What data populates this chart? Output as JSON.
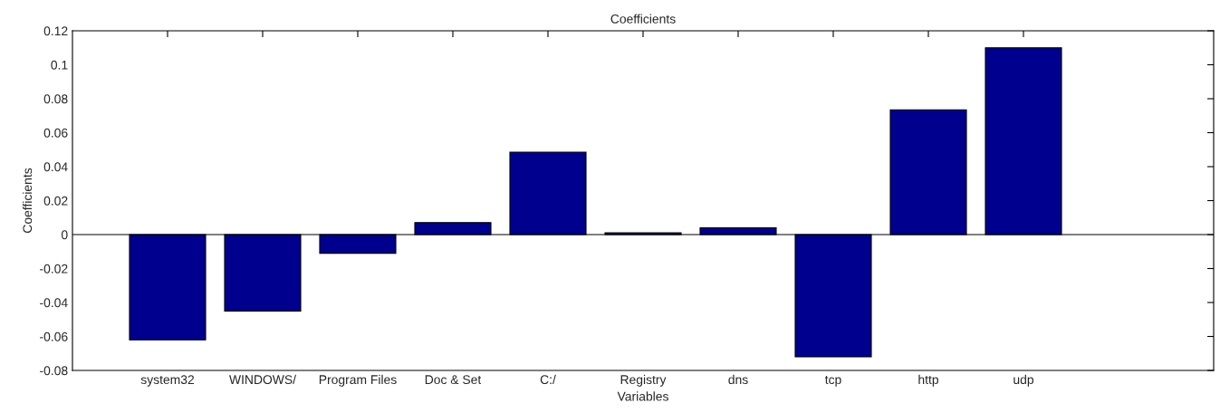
{
  "chart_data": {
    "type": "bar",
    "title": "Coefficients",
    "xlabel": "Variables",
    "ylabel": "Coefficients",
    "categories": [
      "system32",
      "WINDOWS/",
      "Program Files",
      "Doc & Set",
      "C:/",
      "Registry",
      "dns",
      "tcp",
      "http",
      "udp"
    ],
    "values": [
      -0.062,
      -0.045,
      -0.011,
      0.007,
      0.0485,
      0.001,
      0.004,
      -0.072,
      0.0735,
      0.11
    ],
    "color": "#00008f",
    "ylim": [
      -0.08,
      0.12
    ],
    "yticks": [
      -0.08,
      -0.06,
      -0.04,
      -0.02,
      0,
      0.02,
      0.04,
      0.06,
      0.08,
      0.1,
      0.12
    ],
    "ref_lines": [
      {
        "axis": "y",
        "value": 0,
        "color": "#000000"
      }
    ],
    "grid": false,
    "legend": false
  }
}
